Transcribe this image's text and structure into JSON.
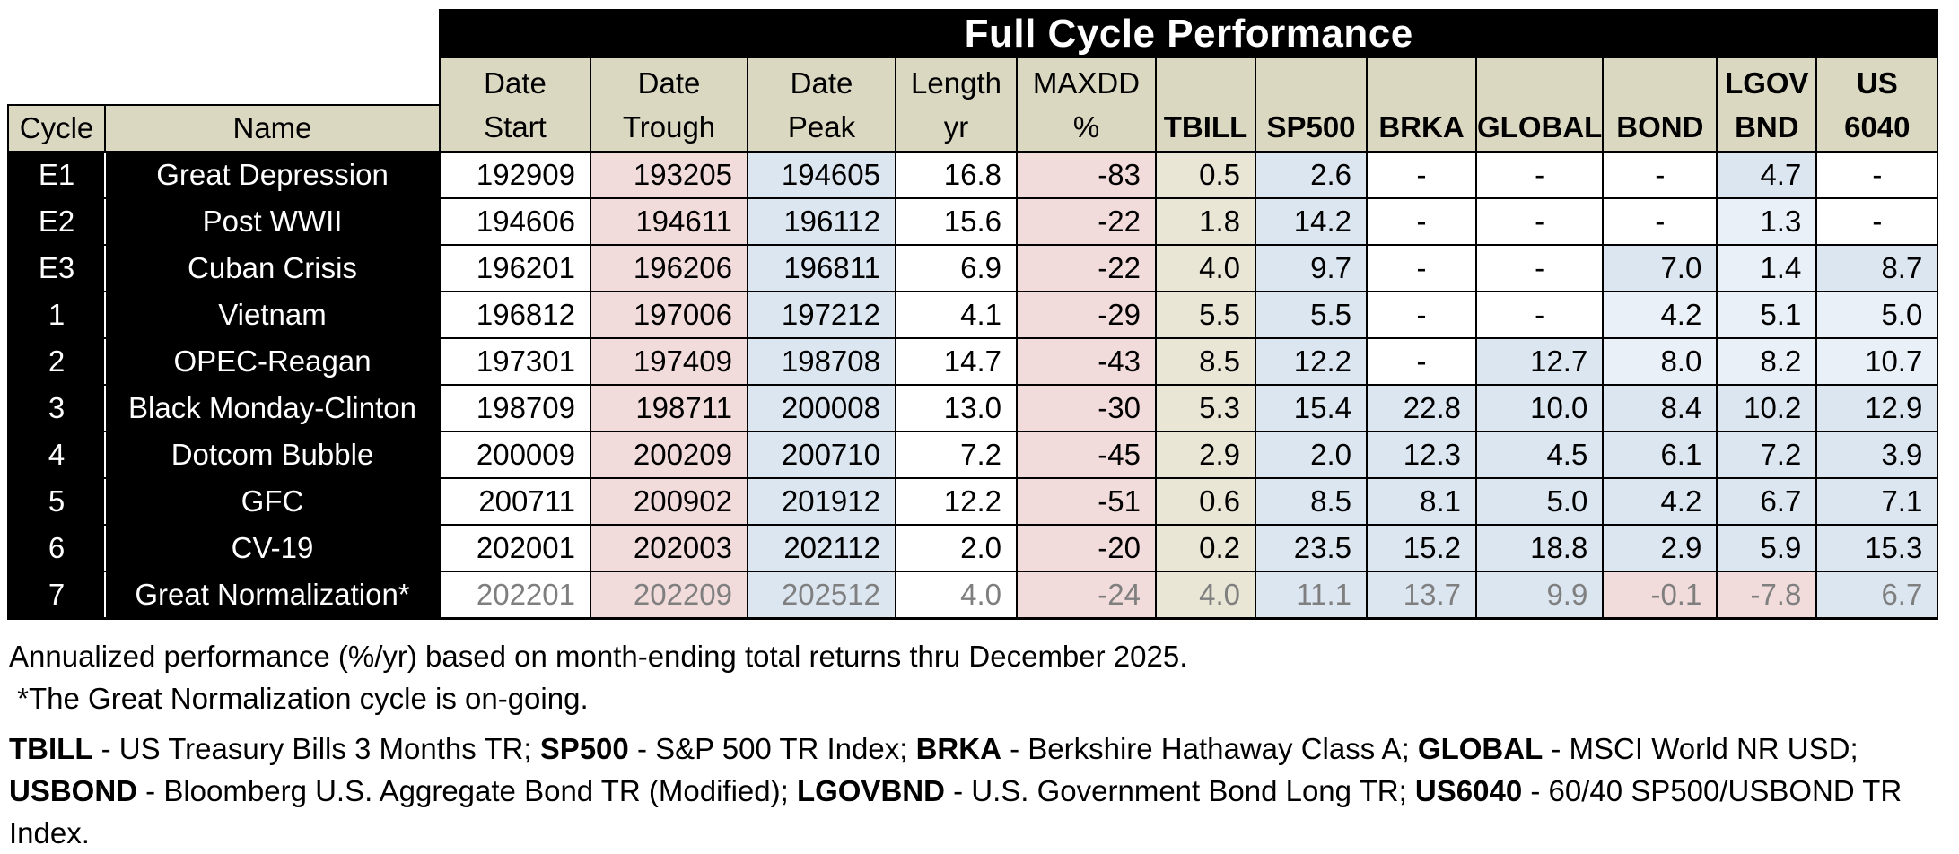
{
  "chart_data": {
    "type": "table",
    "title": "Full Cycle Performance",
    "columns": [
      {
        "key": "cycle",
        "l1": "",
        "l2": "Cycle"
      },
      {
        "key": "name",
        "l1": "",
        "l2": "Name"
      },
      {
        "key": "date_start",
        "l1": "Date",
        "l2": "Start"
      },
      {
        "key": "date_trough",
        "l1": "Date",
        "l2": "Trough"
      },
      {
        "key": "date_peak",
        "l1": "Date",
        "l2": "Peak"
      },
      {
        "key": "length_yr",
        "l1": "Length",
        "l2": "yr"
      },
      {
        "key": "maxdd_pct",
        "l1": "MAXDD",
        "l2": "%"
      },
      {
        "key": "tbill",
        "l1": "",
        "l2": "TBILL"
      },
      {
        "key": "sp500",
        "l1": "",
        "l2": "SP500"
      },
      {
        "key": "brka",
        "l1": "",
        "l2": "BRKA"
      },
      {
        "key": "global",
        "l1": "",
        "l2": "GLOBAL"
      },
      {
        "key": "bond",
        "l1": "",
        "l2": "BOND"
      },
      {
        "key": "lgov_bnd",
        "l1": "LGOV",
        "l2": "BND"
      },
      {
        "key": "us_6040",
        "l1": "US",
        "l2": "6040"
      }
    ],
    "rows": [
      {
        "cycle": "E1",
        "name": "Great Depression",
        "ongoing": false,
        "cells": [
          {
            "v": "192909",
            "bg": "w"
          },
          {
            "v": "193205",
            "bg": "p"
          },
          {
            "v": "194605",
            "bg": "b"
          },
          {
            "v": "16.8",
            "bg": "w"
          },
          {
            "v": "-83",
            "bg": "p"
          },
          {
            "v": "0.5",
            "bg": "t"
          },
          {
            "v": "2.6",
            "bg": "b"
          },
          {
            "v": "-",
            "bg": "w"
          },
          {
            "v": "-",
            "bg": "w"
          },
          {
            "v": "-",
            "bg": "w"
          },
          {
            "v": "4.7",
            "bg": "b"
          },
          {
            "v": "-",
            "bg": "w"
          }
        ]
      },
      {
        "cycle": "E2",
        "name": "Post WWII",
        "ongoing": false,
        "cells": [
          {
            "v": "194606",
            "bg": "w"
          },
          {
            "v": "194611",
            "bg": "p"
          },
          {
            "v": "196112",
            "bg": "b"
          },
          {
            "v": "15.6",
            "bg": "w"
          },
          {
            "v": "-22",
            "bg": "p"
          },
          {
            "v": "1.8",
            "bg": "t"
          },
          {
            "v": "14.2",
            "bg": "b"
          },
          {
            "v": "-",
            "bg": "w"
          },
          {
            "v": "-",
            "bg": "w"
          },
          {
            "v": "-",
            "bg": "w"
          },
          {
            "v": "1.3",
            "bg": "l"
          },
          {
            "v": "-",
            "bg": "w"
          }
        ]
      },
      {
        "cycle": "E3",
        "name": "Cuban Crisis",
        "ongoing": false,
        "cells": [
          {
            "v": "196201",
            "bg": "w"
          },
          {
            "v": "196206",
            "bg": "p"
          },
          {
            "v": "196811",
            "bg": "b"
          },
          {
            "v": "6.9",
            "bg": "w"
          },
          {
            "v": "-22",
            "bg": "p"
          },
          {
            "v": "4.0",
            "bg": "t"
          },
          {
            "v": "9.7",
            "bg": "b"
          },
          {
            "v": "-",
            "bg": "w"
          },
          {
            "v": "-",
            "bg": "w"
          },
          {
            "v": "7.0",
            "bg": "b"
          },
          {
            "v": "1.4",
            "bg": "l"
          },
          {
            "v": "8.7",
            "bg": "b"
          }
        ]
      },
      {
        "cycle": "1",
        "name": "Vietnam",
        "ongoing": false,
        "cells": [
          {
            "v": "196812",
            "bg": "w"
          },
          {
            "v": "197006",
            "bg": "p"
          },
          {
            "v": "197212",
            "bg": "b"
          },
          {
            "v": "4.1",
            "bg": "w"
          },
          {
            "v": "-29",
            "bg": "p"
          },
          {
            "v": "5.5",
            "bg": "t"
          },
          {
            "v": "5.5",
            "bg": "b"
          },
          {
            "v": "-",
            "bg": "w"
          },
          {
            "v": "-",
            "bg": "w"
          },
          {
            "v": "4.2",
            "bg": "l"
          },
          {
            "v": "5.1",
            "bg": "l"
          },
          {
            "v": "5.0",
            "bg": "l"
          }
        ]
      },
      {
        "cycle": "2",
        "name": "OPEC-Reagan",
        "ongoing": false,
        "cells": [
          {
            "v": "197301",
            "bg": "w"
          },
          {
            "v": "197409",
            "bg": "p"
          },
          {
            "v": "198708",
            "bg": "b"
          },
          {
            "v": "14.7",
            "bg": "w"
          },
          {
            "v": "-43",
            "bg": "p"
          },
          {
            "v": "8.5",
            "bg": "t"
          },
          {
            "v": "12.2",
            "bg": "b"
          },
          {
            "v": "-",
            "bg": "w"
          },
          {
            "v": "12.7",
            "bg": "b"
          },
          {
            "v": "8.0",
            "bg": "l"
          },
          {
            "v": "8.2",
            "bg": "l"
          },
          {
            "v": "10.7",
            "bg": "l"
          }
        ]
      },
      {
        "cycle": "3",
        "name": "Black Monday-Clinton",
        "ongoing": false,
        "cells": [
          {
            "v": "198709",
            "bg": "w"
          },
          {
            "v": "198711",
            "bg": "p"
          },
          {
            "v": "200008",
            "bg": "b"
          },
          {
            "v": "13.0",
            "bg": "w"
          },
          {
            "v": "-30",
            "bg": "p"
          },
          {
            "v": "5.3",
            "bg": "t"
          },
          {
            "v": "15.4",
            "bg": "b"
          },
          {
            "v": "22.8",
            "bg": "b"
          },
          {
            "v": "10.0",
            "bg": "b"
          },
          {
            "v": "8.4",
            "bg": "b"
          },
          {
            "v": "10.2",
            "bg": "b"
          },
          {
            "v": "12.9",
            "bg": "b"
          }
        ]
      },
      {
        "cycle": "4",
        "name": "Dotcom Bubble",
        "ongoing": false,
        "cells": [
          {
            "v": "200009",
            "bg": "w"
          },
          {
            "v": "200209",
            "bg": "p"
          },
          {
            "v": "200710",
            "bg": "b"
          },
          {
            "v": "7.2",
            "bg": "w"
          },
          {
            "v": "-45",
            "bg": "p"
          },
          {
            "v": "2.9",
            "bg": "t"
          },
          {
            "v": "2.0",
            "bg": "b"
          },
          {
            "v": "12.3",
            "bg": "b"
          },
          {
            "v": "4.5",
            "bg": "b"
          },
          {
            "v": "6.1",
            "bg": "b"
          },
          {
            "v": "7.2",
            "bg": "b"
          },
          {
            "v": "3.9",
            "bg": "b"
          }
        ]
      },
      {
        "cycle": "5",
        "name": "GFC",
        "ongoing": false,
        "cells": [
          {
            "v": "200711",
            "bg": "w"
          },
          {
            "v": "200902",
            "bg": "p"
          },
          {
            "v": "201912",
            "bg": "b"
          },
          {
            "v": "12.2",
            "bg": "w"
          },
          {
            "v": "-51",
            "bg": "p"
          },
          {
            "v": "0.6",
            "bg": "t"
          },
          {
            "v": "8.5",
            "bg": "b"
          },
          {
            "v": "8.1",
            "bg": "b"
          },
          {
            "v": "5.0",
            "bg": "b"
          },
          {
            "v": "4.2",
            "bg": "b"
          },
          {
            "v": "6.7",
            "bg": "b"
          },
          {
            "v": "7.1",
            "bg": "b"
          }
        ]
      },
      {
        "cycle": "6",
        "name": "CV-19",
        "ongoing": false,
        "cells": [
          {
            "v": "202001",
            "bg": "w"
          },
          {
            "v": "202003",
            "bg": "p"
          },
          {
            "v": "202112",
            "bg": "b"
          },
          {
            "v": "2.0",
            "bg": "w"
          },
          {
            "v": "-20",
            "bg": "p"
          },
          {
            "v": "0.2",
            "bg": "t"
          },
          {
            "v": "23.5",
            "bg": "b"
          },
          {
            "v": "15.2",
            "bg": "b"
          },
          {
            "v": "18.8",
            "bg": "b"
          },
          {
            "v": "2.9",
            "bg": "b"
          },
          {
            "v": "5.9",
            "bg": "b"
          },
          {
            "v": "15.3",
            "bg": "b"
          }
        ]
      },
      {
        "cycle": "7",
        "name": "Great Normalization*",
        "ongoing": true,
        "cells": [
          {
            "v": "202201",
            "bg": "w"
          },
          {
            "v": "202209",
            "bg": "p"
          },
          {
            "v": "202512",
            "bg": "b"
          },
          {
            "v": "4.0",
            "bg": "w"
          },
          {
            "v": "-24",
            "bg": "p"
          },
          {
            "v": "4.0",
            "bg": "t"
          },
          {
            "v": "11.1",
            "bg": "b"
          },
          {
            "v": "13.7",
            "bg": "b"
          },
          {
            "v": "9.9",
            "bg": "b"
          },
          {
            "v": "-0.1",
            "bg": "p"
          },
          {
            "v": "-7.8",
            "bg": "p"
          },
          {
            "v": "6.7",
            "bg": "b"
          }
        ]
      }
    ],
    "footnotes": [
      [
        {
          "t": "Annualized performance (%/yr) based on month-ending total returns thru December 2025.",
          "b": false
        }
      ],
      [
        {
          "t": " *The Great Normalization cycle is on-going.",
          "b": false
        }
      ],
      [
        {
          "t": "TBILL",
          "b": true
        },
        {
          "t": " - US Treasury Bills 3 Months TR; ",
          "b": false
        },
        {
          "t": "SP500",
          "b": true
        },
        {
          "t": " - S&P 500 TR Index; ",
          "b": false
        },
        {
          "t": "BRKA",
          "b": true
        },
        {
          "t": " - Berkshire Hathaway Class A; ",
          "b": false
        },
        {
          "t": "GLOBAL",
          "b": true
        },
        {
          "t": " - MSCI World NR USD;",
          "b": false
        }
      ],
      [
        {
          "t": "USBOND",
          "b": true
        },
        {
          "t": " - Bloomberg U.S. Aggregate Bond TR (Modified); ",
          "b": false
        },
        {
          "t": "LGOVBND",
          "b": true
        },
        {
          "t": " - U.S. Government Bond Long TR; ",
          "b": false
        },
        {
          "t": "US6040",
          "b": true
        },
        {
          "t": " - 60/40 SP500/USBOND TR Index.",
          "b": false
        }
      ]
    ],
    "palette": {
      "header_tan": "#dbd8c2",
      "tbill_tan": "#e9e6d6",
      "negative_pink": "#f2dcdb",
      "value_blue": "#dce6f1",
      "value_light_blue": "#eaf0f8",
      "name_black": "#000000",
      "ongoing_gray_text": "#7f7f7f",
      "title_text": "#ffffff"
    }
  }
}
